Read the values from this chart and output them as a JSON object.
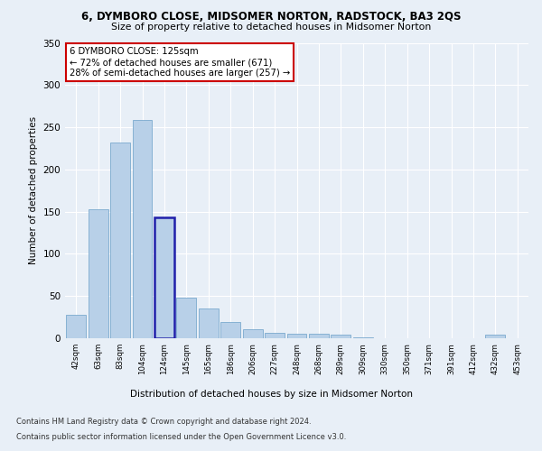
{
  "title1": "6, DYMBORO CLOSE, MIDSOMER NORTON, RADSTOCK, BA3 2QS",
  "title2": "Size of property relative to detached houses in Midsomer Norton",
  "xlabel": "Distribution of detached houses by size in Midsomer Norton",
  "ylabel": "Number of detached properties",
  "categories": [
    "42sqm",
    "63sqm",
    "83sqm",
    "104sqm",
    "124sqm",
    "145sqm",
    "165sqm",
    "186sqm",
    "206sqm",
    "227sqm",
    "248sqm",
    "268sqm",
    "289sqm",
    "309sqm",
    "330sqm",
    "350sqm",
    "371sqm",
    "391sqm",
    "412sqm",
    "432sqm",
    "453sqm"
  ],
  "values": [
    28,
    153,
    232,
    259,
    143,
    48,
    35,
    19,
    11,
    6,
    5,
    5,
    4,
    1,
    0,
    0,
    0,
    0,
    0,
    4,
    0
  ],
  "bar_color": "#b8d0e8",
  "bar_edge_color": "#6a9fc8",
  "highlight_index": 4,
  "highlight_color": "#b8d0e8",
  "highlight_edge_color": "#2020aa",
  "annotation_line1": "6 DYMBORO CLOSE: 125sqm",
  "annotation_line2": "← 72% of detached houses are smaller (671)",
  "annotation_line3": "28% of semi-detached houses are larger (257) →",
  "annotation_box_color": "#ffffff",
  "annotation_border_color": "#cc0000",
  "ylim": [
    0,
    350
  ],
  "yticks": [
    0,
    50,
    100,
    150,
    200,
    250,
    300,
    350
  ],
  "footnote1": "Contains HM Land Registry data © Crown copyright and database right 2024.",
  "footnote2": "Contains public sector information licensed under the Open Government Licence v3.0.",
  "bg_color": "#e8eff7",
  "plot_bg_color": "#e8eff7"
}
